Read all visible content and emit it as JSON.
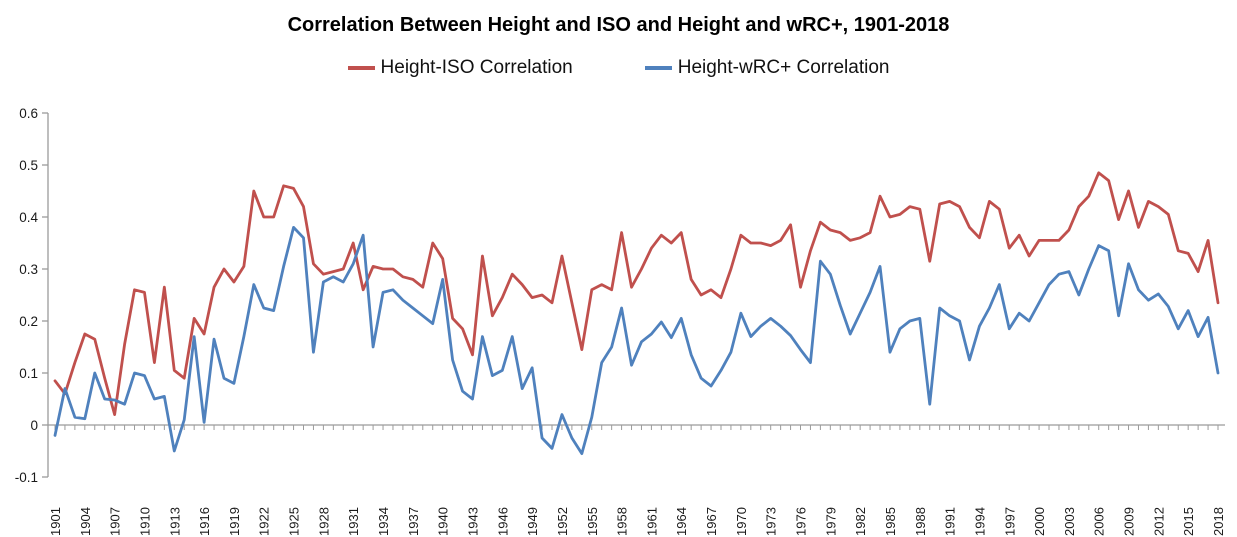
{
  "title": "Correlation Between Height and ISO and Height and wRC+, 1901-2018",
  "legend": [
    {
      "label": "Height-ISO Correlation",
      "color": "#C0504D"
    },
    {
      "label": "Height-wRC+ Correlation",
      "color": "#4F81BD"
    }
  ],
  "chart_data": {
    "type": "line",
    "title": "Correlation Between Height and ISO and Height and wRC+, 1901-2018",
    "xlabel": "",
    "ylabel": "",
    "x_start": 1901,
    "x_end": 2018,
    "x_label_step": 3,
    "ylim": [
      -0.1,
      0.6
    ],
    "yticks": [
      0.6,
      0.5,
      0.4,
      0.3,
      0.2,
      0.1,
      0,
      -0.1
    ],
    "grid": false,
    "legend_position": "top",
    "axis_color": "#9b9b9b",
    "tick_label_color": "#1a1a1a",
    "series": [
      {
        "name": "Height-ISO Correlation",
        "color": "#C0504D",
        "values": [
          0.085,
          0.06,
          0.12,
          0.175,
          0.165,
          0.09,
          0.02,
          0.155,
          0.26,
          0.255,
          0.12,
          0.265,
          0.105,
          0.09,
          0.205,
          0.175,
          0.265,
          0.3,
          0.275,
          0.305,
          0.45,
          0.4,
          0.4,
          0.46,
          0.455,
          0.42,
          0.31,
          0.29,
          0.295,
          0.3,
          0.35,
          0.26,
          0.305,
          0.3,
          0.3,
          0.285,
          0.28,
          0.265,
          0.35,
          0.32,
          0.205,
          0.185,
          0.135,
          0.325,
          0.21,
          0.245,
          0.29,
          0.27,
          0.245,
          0.25,
          0.235,
          0.325,
          0.235,
          0.145,
          0.26,
          0.27,
          0.26,
          0.37,
          0.265,
          0.3,
          0.34,
          0.365,
          0.35,
          0.37,
          0.28,
          0.25,
          0.26,
          0.245,
          0.3,
          0.365,
          0.35,
          0.35,
          0.345,
          0.355,
          0.385,
          0.265,
          0.335,
          0.39,
          0.375,
          0.37,
          0.355,
          0.36,
          0.37,
          0.44,
          0.4,
          0.405,
          0.42,
          0.415,
          0.315,
          0.425,
          0.43,
          0.42,
          0.38,
          0.36,
          0.43,
          0.415,
          0.34,
          0.365,
          0.325,
          0.355,
          0.355,
          0.355,
          0.375,
          0.42,
          0.44,
          0.485,
          0.47,
          0.395,
          0.45,
          0.38,
          0.43,
          0.42,
          0.405,
          0.335,
          0.33,
          0.295,
          0.355,
          0.235
        ]
      },
      {
        "name": "Height-wRC+ Correlation",
        "color": "#4F81BD",
        "values": [
          -0.02,
          0.07,
          0.015,
          0.012,
          0.1,
          0.05,
          0.048,
          0.04,
          0.1,
          0.095,
          0.05,
          0.055,
          -0.05,
          0.01,
          0.17,
          0.005,
          0.165,
          0.09,
          0.08,
          0.17,
          0.27,
          0.225,
          0.22,
          0.305,
          0.38,
          0.36,
          0.14,
          0.275,
          0.285,
          0.275,
          0.31,
          0.365,
          0.15,
          0.255,
          0.26,
          0.24,
          0.225,
          0.21,
          0.195,
          0.28,
          0.125,
          0.065,
          0.05,
          0.17,
          0.095,
          0.105,
          0.17,
          0.07,
          0.11,
          -0.025,
          -0.045,
          0.02,
          -0.025,
          -0.055,
          0.015,
          0.12,
          0.15,
          0.225,
          0.115,
          0.16,
          0.175,
          0.198,
          0.168,
          0.205,
          0.135,
          0.09,
          0.075,
          0.105,
          0.14,
          0.215,
          0.17,
          0.19,
          0.205,
          0.19,
          0.172,
          0.145,
          0.12,
          0.315,
          0.29,
          0.23,
          0.175,
          0.215,
          0.255,
          0.305,
          0.14,
          0.185,
          0.2,
          0.205,
          0.04,
          0.225,
          0.21,
          0.2,
          0.125,
          0.19,
          0.225,
          0.27,
          0.185,
          0.215,
          0.2,
          0.235,
          0.27,
          0.29,
          0.295,
          0.25,
          0.3,
          0.345,
          0.335,
          0.21,
          0.31,
          0.26,
          0.24,
          0.252,
          0.228,
          0.185,
          0.22,
          0.17,
          0.207,
          0.1
        ]
      }
    ]
  }
}
